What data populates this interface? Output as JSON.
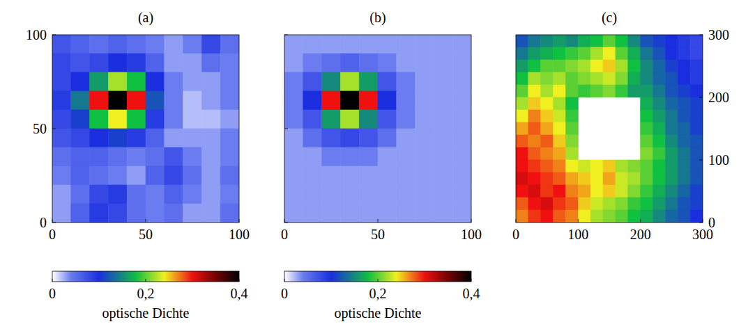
{
  "chart_data": [
    {
      "type": "heatmap",
      "title": "(a)",
      "xlim": [
        0,
        100
      ],
      "ylim": [
        0,
        100
      ],
      "xticks": [
        0,
        50,
        100
      ],
      "yticks": [
        0,
        50,
        100
      ],
      "tick_labels": true,
      "x": [
        5,
        15,
        25,
        35,
        45,
        55,
        65,
        75,
        85,
        95
      ],
      "y": [
        95,
        85,
        75,
        65,
        55,
        45,
        35,
        25,
        15,
        5
      ],
      "zlim": [
        0,
        0.4
      ],
      "colorbar": {
        "ticks": [
          0,
          {
            "value": 0.2,
            "label": "0,2"
          },
          {
            "value": 0.4,
            "label": "0,4"
          }
        ],
        "label": "optische Dichte"
      },
      "z": [
        [
          0.07,
          0.06,
          0.05,
          0.06,
          0.05,
          0.04,
          0.03,
          0.04,
          0.08,
          0.05
        ],
        [
          0.08,
          0.07,
          0.08,
          0.1,
          0.09,
          0.06,
          0.03,
          0.03,
          0.05,
          0.04
        ],
        [
          0.08,
          0.1,
          0.16,
          0.22,
          0.18,
          0.1,
          0.04,
          0.03,
          0.03,
          0.04
        ],
        [
          0.09,
          0.14,
          0.3,
          0.4,
          0.3,
          0.12,
          0.04,
          0.02,
          0.03,
          0.04
        ],
        [
          0.08,
          0.11,
          0.18,
          0.24,
          0.18,
          0.09,
          0.04,
          0.02,
          0.02,
          0.03
        ],
        [
          0.07,
          0.08,
          0.1,
          0.11,
          0.09,
          0.06,
          0.03,
          0.03,
          0.03,
          0.04
        ],
        [
          0.05,
          0.06,
          0.06,
          0.05,
          0.04,
          0.05,
          0.07,
          0.04,
          0.03,
          0.04
        ],
        [
          0.04,
          0.06,
          0.05,
          0.04,
          0.03,
          0.06,
          0.08,
          0.05,
          0.03,
          0.05
        ],
        [
          0.03,
          0.05,
          0.08,
          0.09,
          0.05,
          0.04,
          0.06,
          0.04,
          0.03,
          0.04
        ],
        [
          0.03,
          0.06,
          0.09,
          0.08,
          0.05,
          0.04,
          0.05,
          0.03,
          0.03,
          0.05
        ]
      ]
    },
    {
      "type": "heatmap",
      "title": "(b)",
      "xlim": [
        0,
        100
      ],
      "ylim": [
        0,
        100
      ],
      "xticks": [
        0,
        50,
        100
      ],
      "yticks": [
        0,
        50,
        100
      ],
      "tick_labels": "x",
      "x": [
        5,
        15,
        25,
        35,
        45,
        55,
        65,
        75,
        85,
        95
      ],
      "y": [
        95,
        85,
        75,
        65,
        55,
        45,
        35,
        25,
        15,
        5
      ],
      "zlim": [
        0,
        0.4
      ],
      "colorbar": {
        "ticks": [
          0,
          {
            "value": 0.2,
            "label": "0,2"
          },
          {
            "value": 0.4,
            "label": "0,4"
          }
        ],
        "label": "optische Dichte"
      },
      "z": [
        [
          0.03,
          0.03,
          0.03,
          0.03,
          0.03,
          0.03,
          0.03,
          0.03,
          0.03,
          0.03
        ],
        [
          0.03,
          0.04,
          0.05,
          0.06,
          0.05,
          0.04,
          0.03,
          0.03,
          0.03,
          0.03
        ],
        [
          0.04,
          0.07,
          0.15,
          0.22,
          0.16,
          0.07,
          0.04,
          0.03,
          0.03,
          0.03
        ],
        [
          0.04,
          0.1,
          0.3,
          0.4,
          0.3,
          0.1,
          0.04,
          0.03,
          0.03,
          0.03
        ],
        [
          0.04,
          0.07,
          0.16,
          0.22,
          0.15,
          0.07,
          0.04,
          0.03,
          0.03,
          0.03
        ],
        [
          0.03,
          0.05,
          0.07,
          0.08,
          0.07,
          0.05,
          0.03,
          0.03,
          0.03,
          0.03
        ],
        [
          0.03,
          0.03,
          0.04,
          0.04,
          0.04,
          0.03,
          0.03,
          0.03,
          0.03,
          0.03
        ],
        [
          0.03,
          0.03,
          0.03,
          0.03,
          0.03,
          0.03,
          0.03,
          0.03,
          0.03,
          0.03
        ],
        [
          0.03,
          0.03,
          0.03,
          0.03,
          0.03,
          0.03,
          0.03,
          0.03,
          0.03,
          0.03
        ],
        [
          0.03,
          0.03,
          0.03,
          0.03,
          0.03,
          0.03,
          0.03,
          0.03,
          0.03,
          0.03
        ]
      ]
    },
    {
      "type": "heatmap",
      "title": "(c)",
      "xlim": [
        0,
        300
      ],
      "ylim": [
        0,
        300
      ],
      "xticks": [
        0,
        100,
        200,
        300
      ],
      "yticks": [
        0,
        100,
        200,
        300
      ],
      "tick_labels": true,
      "x": [
        10,
        30,
        50,
        70,
        90,
        110,
        130,
        150,
        170,
        190,
        210,
        230,
        250,
        270,
        290
      ],
      "y": [
        290,
        270,
        250,
        230,
        210,
        190,
        170,
        150,
        130,
        110,
        90,
        70,
        50,
        30,
        10
      ],
      "zlim": [
        0,
        0.4
      ],
      "z": [
        [
          0.12,
          0.14,
          0.15,
          0.16,
          0.15,
          0.17,
          0.18,
          0.2,
          0.18,
          0.15,
          0.12,
          0.11,
          0.1,
          0.09,
          0.08
        ],
        [
          0.14,
          0.16,
          0.17,
          0.18,
          0.19,
          0.2,
          0.22,
          0.24,
          0.2,
          0.17,
          0.14,
          0.12,
          0.1,
          0.09,
          0.08
        ],
        [
          0.16,
          0.18,
          0.2,
          0.2,
          0.21,
          0.22,
          0.24,
          0.25,
          0.22,
          0.18,
          0.15,
          0.13,
          0.11,
          0.1,
          0.09
        ],
        [
          0.18,
          0.22,
          0.21,
          0.22,
          0.2,
          0.21,
          0.22,
          0.23,
          0.21,
          0.17,
          0.15,
          0.13,
          0.12,
          0.1,
          0.09
        ],
        [
          0.2,
          0.24,
          0.22,
          0.24,
          0.2,
          0.19,
          0.2,
          0.21,
          0.19,
          0.16,
          0.16,
          0.14,
          0.12,
          0.11,
          0.1
        ],
        [
          0.22,
          0.25,
          0.24,
          0.22,
          0.18,
          null,
          null,
          null,
          null,
          null,
          0.17,
          0.15,
          0.13,
          0.12,
          0.11
        ],
        [
          0.24,
          0.27,
          0.25,
          0.23,
          0.19,
          null,
          null,
          null,
          null,
          null,
          0.18,
          0.16,
          0.14,
          0.12,
          0.11
        ],
        [
          0.26,
          0.28,
          0.26,
          0.24,
          0.2,
          null,
          null,
          null,
          null,
          null,
          0.19,
          0.17,
          0.14,
          0.13,
          0.11
        ],
        [
          0.28,
          0.27,
          0.28,
          0.25,
          0.21,
          null,
          null,
          null,
          null,
          null,
          0.2,
          0.18,
          0.15,
          0.13,
          0.12
        ],
        [
          0.3,
          0.28,
          0.27,
          0.26,
          0.22,
          null,
          null,
          null,
          null,
          null,
          0.21,
          0.19,
          0.16,
          0.14,
          0.12
        ],
        [
          0.3,
          0.29,
          0.28,
          0.27,
          0.24,
          0.23,
          0.24,
          0.25,
          0.22,
          0.21,
          0.2,
          0.18,
          0.16,
          0.14,
          0.12
        ],
        [
          0.31,
          0.3,
          0.29,
          0.28,
          0.26,
          0.25,
          0.24,
          0.26,
          0.23,
          0.22,
          0.2,
          0.18,
          0.16,
          0.14,
          0.12
        ],
        [
          0.3,
          0.31,
          0.29,
          0.3,
          0.27,
          0.26,
          0.24,
          0.25,
          0.23,
          0.21,
          0.19,
          0.17,
          0.15,
          0.13,
          0.11
        ],
        [
          0.28,
          0.3,
          0.31,
          0.29,
          0.28,
          0.25,
          0.23,
          0.22,
          0.21,
          0.19,
          0.18,
          0.16,
          0.14,
          0.12,
          0.11
        ],
        [
          0.27,
          0.29,
          0.3,
          0.28,
          0.27,
          0.24,
          0.22,
          0.21,
          0.2,
          0.18,
          0.17,
          0.15,
          0.13,
          0.12,
          0.1
        ]
      ]
    }
  ]
}
